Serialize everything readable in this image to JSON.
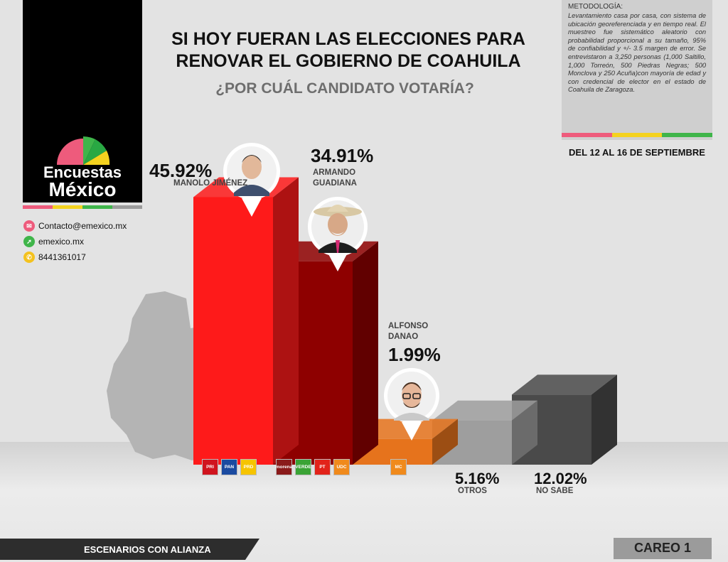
{
  "brand": {
    "line1": "Encuestas",
    "line2": "México"
  },
  "contact": {
    "email": "Contacto@emexico.mx",
    "web": "emexico.mx",
    "phone": "8441361017"
  },
  "methodology": {
    "title": "METODOLOGÍA:",
    "text": "Levantamiento casa por casa, con sistema de ubicación georeferenciada y en tiempo real. El muestreo fue sistemático aleatorio con probabilidad proporcional a su tamaño, 95% de confiabilidad y +/- 3.5 margen de error. Se entrevistaron a 3,250 personas (1,000 Saltillo, 1,000 Torreón, 500 Piedras Negras; 500 Monclova y 250 Acuña)con mayoría de edad y con credencial de elector en el estado de Coahuila de Zaragoza."
  },
  "date": "DEL 12 AL 16 DE SEPTIEMBRE",
  "footer": {
    "scenario": "ESCENARIOS CON ALIANZA",
    "careo": "CAREO 1"
  },
  "parties": {
    "c1": [
      {
        "label": "PRI",
        "color": "#d0141e"
      },
      {
        "label": "PAN",
        "color": "#1a4aa0"
      },
      {
        "label": "PRD",
        "color": "#f6c400"
      }
    ],
    "c2": [
      {
        "label": "morena",
        "color": "#8a1a1a"
      },
      {
        "label": "VERDE",
        "color": "#3aa335"
      },
      {
        "label": "PT",
        "color": "#e2231a"
      },
      {
        "label": "UDC",
        "color": "#f08a1c"
      }
    ],
    "c3": [
      {
        "label": "MC",
        "color": "#f08a1c"
      }
    ]
  },
  "colors": {
    "c1": "#fe1a1a",
    "c2": "#8e0000",
    "c3": "#e6731c",
    "otros": "#9e9e9e",
    "nosabe": "#4a4a4a"
  },
  "chart_data": {
    "type": "bar",
    "title": "SI HOY FUERAN LAS ELECCIONES PARA RENOVAR EL GOBIERNO DE COAHUILA",
    "subtitle": "¿POR CUÁL CANDIDATO VOTARÍA?",
    "categories": [
      "MANOLO JIMÉNEZ",
      "ARMANDO GUADIANA",
      "ALFONSO DANAO",
      "OTROS",
      "NO SABE"
    ],
    "values": [
      45.92,
      34.91,
      1.99,
      5.16,
      12.02
    ],
    "labels": [
      "45.92%",
      "34.91%",
      "1.99%",
      "5.16%",
      "12.02%"
    ],
    "ylim": [
      0,
      50
    ],
    "grid": false,
    "legend": "none"
  }
}
